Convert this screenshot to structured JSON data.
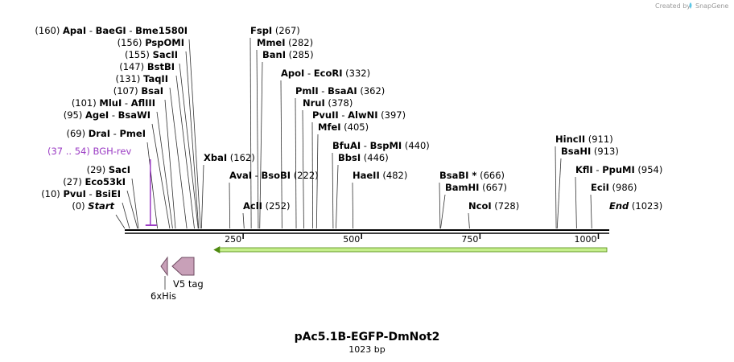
{
  "credit": "Created by",
  "brand": "SnapGene",
  "title": "pAc5.1B-EGFP-DmNot2",
  "length_label": "1023 bp",
  "sequence_length": 1023,
  "ruler_ticks": [
    {
      "bp": 250,
      "label": "250"
    },
    {
      "bp": 500,
      "label": "500"
    },
    {
      "bp": 750,
      "label": "750"
    },
    {
      "bp": 1000,
      "label": "1000"
    }
  ],
  "site_groups": [
    {
      "pos_text": "(160)",
      "names": [
        "ApaI",
        "BaeGI",
        "Bme1580I"
      ],
      "bp": 160,
      "pos_side": "left"
    },
    {
      "pos_text": "(156)",
      "names": [
        "PspOMI"
      ],
      "bp": 156,
      "pos_side": "left"
    },
    {
      "pos_text": "(155)",
      "names": [
        "SacII"
      ],
      "bp": 155,
      "pos_side": "left"
    },
    {
      "pos_text": "(147)",
      "names": [
        "BstBI"
      ],
      "bp": 147,
      "pos_side": "left"
    },
    {
      "pos_text": "(131)",
      "names": [
        "TaqII"
      ],
      "bp": 131,
      "pos_side": "left"
    },
    {
      "pos_text": "(107)",
      "names": [
        "BsaI"
      ],
      "bp": 107,
      "pos_side": "left"
    },
    {
      "pos_text": "(101)",
      "names": [
        "MluI",
        "AflIII"
      ],
      "bp": 101,
      "pos_side": "left"
    },
    {
      "pos_text": "(95)",
      "names": [
        "AgeI",
        "BsaWI"
      ],
      "bp": 95,
      "pos_side": "left"
    },
    {
      "pos_text": "(69)",
      "names": [
        "DraI",
        "PmeI"
      ],
      "bp": 69,
      "pos_side": "left"
    },
    {
      "pos_text": "(29)",
      "names": [
        "SacI"
      ],
      "bp": 29,
      "pos_side": "left"
    },
    {
      "pos_text": "(27)",
      "names": [
        "Eco53kI"
      ],
      "bp": 27,
      "pos_side": "left"
    },
    {
      "pos_text": "(10)",
      "names": [
        "PvuI",
        "BsiEI"
      ],
      "bp": 10,
      "pos_side": "left"
    },
    {
      "pos_text": "(0)",
      "names": [
        "Start"
      ],
      "bp": 0,
      "pos_side": "left",
      "italic": true
    },
    {
      "pos_text": "(267)",
      "names": [
        "FspI"
      ],
      "bp": 267,
      "pos_side": "right"
    },
    {
      "pos_text": "(282)",
      "names": [
        "MmeI"
      ],
      "bp": 282,
      "pos_side": "right"
    },
    {
      "pos_text": "(285)",
      "names": [
        "BanI"
      ],
      "bp": 285,
      "pos_side": "right"
    },
    {
      "pos_text": "(332)",
      "names": [
        "ApoI",
        "EcoRI"
      ],
      "bp": 332,
      "pos_side": "right"
    },
    {
      "pos_text": "(362)",
      "names": [
        "PmlI",
        "BsaAI"
      ],
      "bp": 362,
      "pos_side": "right"
    },
    {
      "pos_text": "(378)",
      "names": [
        "NruI"
      ],
      "bp": 378,
      "pos_side": "right"
    },
    {
      "pos_text": "(397)",
      "names": [
        "PvuII",
        "AlwNI"
      ],
      "bp": 397,
      "pos_side": "right"
    },
    {
      "pos_text": "(405)",
      "names": [
        "MfeI"
      ],
      "bp": 405,
      "pos_side": "right"
    },
    {
      "pos_text": "(440)",
      "names": [
        "BfuAI",
        "BspMI"
      ],
      "bp": 440,
      "pos_side": "right"
    },
    {
      "pos_text": "(446)",
      "names": [
        "BbsI"
      ],
      "bp": 446,
      "pos_side": "right"
    },
    {
      "pos_text": "(482)",
      "names": [
        "HaeII"
      ],
      "bp": 482,
      "pos_side": "right"
    },
    {
      "pos_text": "(162)",
      "names": [
        "XbaI"
      ],
      "bp": 162,
      "pos_side": "right"
    },
    {
      "pos_text": "(222)",
      "names": [
        "AvaI",
        "BsoBI"
      ],
      "bp": 222,
      "pos_side": "right"
    },
    {
      "pos_text": "(252)",
      "names": [
        "AclI"
      ],
      "bp": 252,
      "pos_side": "right"
    },
    {
      "pos_text": "(666)",
      "names": [
        "BsaBI *"
      ],
      "bp": 666,
      "pos_side": "right"
    },
    {
      "pos_text": "(667)",
      "names": [
        "BamHI"
      ],
      "bp": 667,
      "pos_side": "right"
    },
    {
      "pos_text": "(728)",
      "names": [
        "NcoI"
      ],
      "bp": 728,
      "pos_side": "right"
    },
    {
      "pos_text": "(911)",
      "names": [
        "HincII"
      ],
      "bp": 911,
      "pos_side": "right"
    },
    {
      "pos_text": "(913)",
      "names": [
        "BsaHI"
      ],
      "bp": 913,
      "pos_side": "right"
    },
    {
      "pos_text": "(954)",
      "names": [
        "KflI",
        "PpuMI"
      ],
      "bp": 954,
      "pos_side": "right"
    },
    {
      "pos_text": "(986)",
      "names": [
        "EciI"
      ],
      "bp": 986,
      "pos_side": "right"
    },
    {
      "pos_text": "(1023)",
      "names": [
        "End"
      ],
      "bp": 1023,
      "pos_side": "right",
      "italic": true
    }
  ],
  "primer": {
    "range_text": "(37 .. 54)",
    "name": "BGH-rev",
    "start": 37,
    "end": 54,
    "color": "#9b3cc4"
  },
  "orf": {
    "start": 184,
    "end": 1023,
    "direction": "reverse",
    "color": "#c6ef8c",
    "outline": "#4f8a10"
  },
  "features": [
    {
      "name": "6xHis",
      "start": 80,
      "end": 97,
      "color": "#c8a0b8"
    },
    {
      "name": "V5 tag",
      "start": 101,
      "end": 142,
      "color": "#c8a0b8"
    }
  ],
  "colors": {
    "backbone": "#000000",
    "line": "#333333",
    "credit": "#9a9a9a",
    "brand_icon": "#5bc6e6"
  }
}
